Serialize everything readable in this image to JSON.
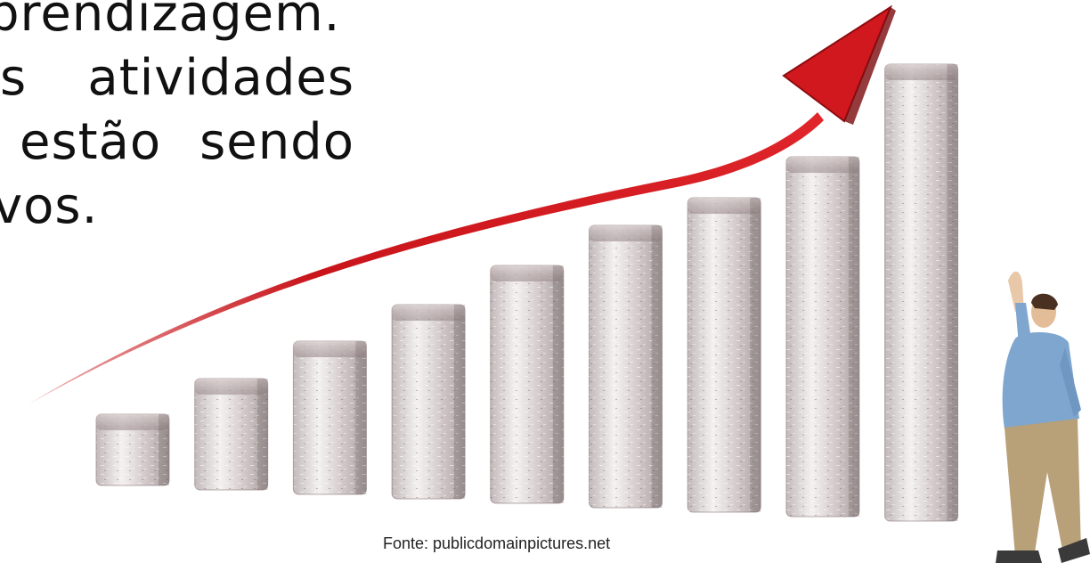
{
  "slide": {
    "lines": {
      "l1": "prendizagem.",
      "l2a": "s",
      "l2b": "atividades",
      "l3a": "estão",
      "l3b": "sendo",
      "l4": "vos."
    },
    "credit": "Fonte: publicdomainpictures.net"
  },
  "illustration": {
    "bar_count": 9,
    "arrow_color": "#c8141a",
    "bar_tint": "#b8a8a8",
    "shirt_color": "#7fa6cf",
    "pants_color": "#b8a078"
  }
}
